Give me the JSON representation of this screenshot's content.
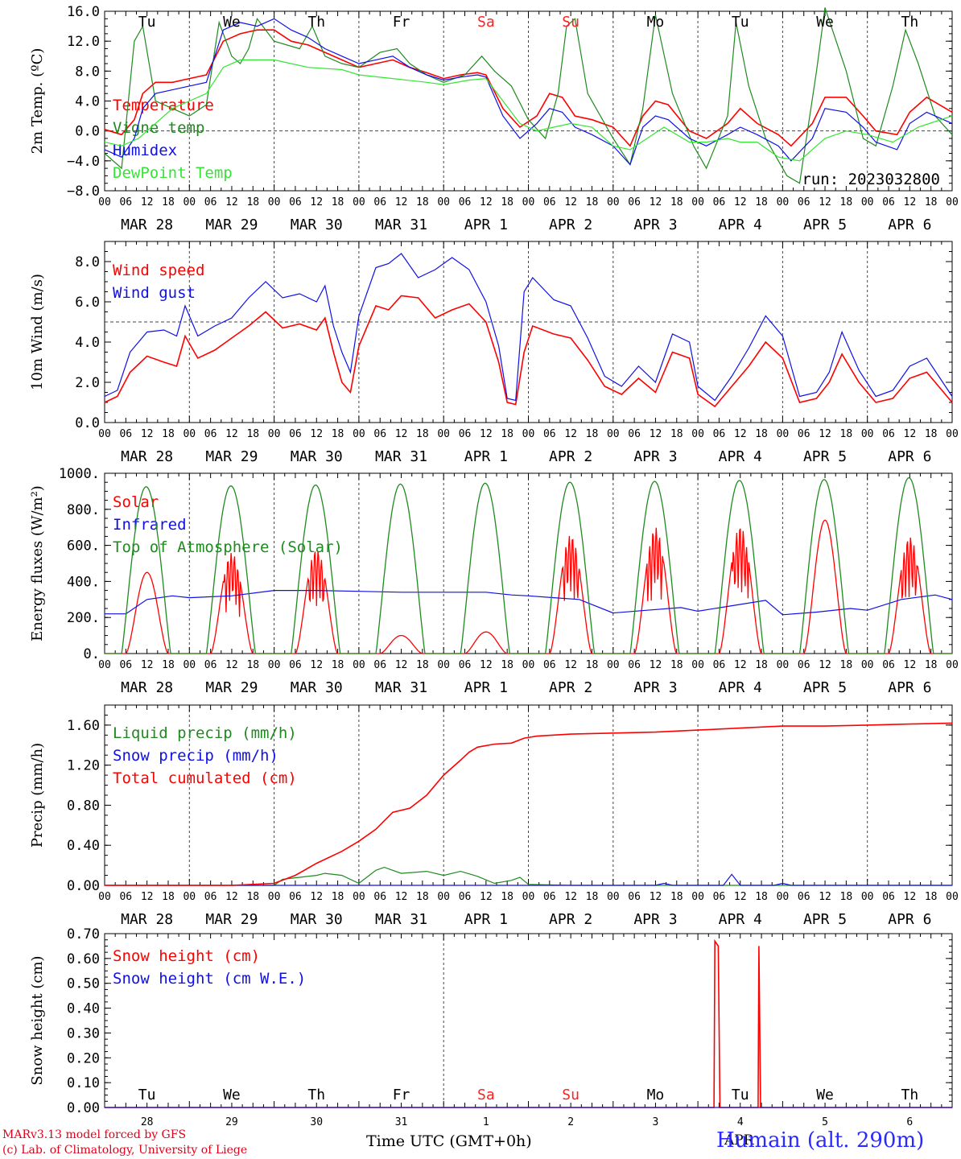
{
  "colors": {
    "red": "#ff0000",
    "dark_green": "#1f8a1f",
    "blue": "#1010e6",
    "light_green": "#33e633",
    "weekend": "#ff2020",
    "text": "#000000"
  },
  "days": {
    "weekday_labels": [
      "Tu",
      "We",
      "Th",
      "Fr",
      "Sa",
      "Su",
      "Mo",
      "Tu",
      "We",
      "Th"
    ],
    "date_labels": [
      "MAR 28",
      "MAR 29",
      "MAR 30",
      "MAR 31",
      "APR  1",
      "APR  2",
      "APR  3",
      "APR  4",
      "APR  5",
      "APR  6"
    ],
    "day_numbers": [
      "28",
      "29",
      "30",
      "31",
      "1",
      "2",
      "3",
      "4",
      "5",
      "6"
    ],
    "weekend_index": [
      4,
      5
    ],
    "hour_ticks": [
      "00",
      "06",
      "12",
      "18"
    ],
    "last_hour": "00"
  },
  "footer": {
    "credit_line1": "MARv3.13 model forced by GFS",
    "credit_line2": "(c) Lab. of Climatology, University of Liege",
    "x_title": "Time UTC (GMT+0h)",
    "bottom_month": "APR",
    "station": "Humain (alt. 290m)"
  },
  "chart_data": [
    {
      "type": "line",
      "ylabel": "2m Temp. (ºC)",
      "ylim": [
        -8,
        16
      ],
      "ytick_labels": [
        "16.0",
        "12.0",
        "8.0",
        "4.0",
        "0.0",
        "−4.0",
        "−8.0"
      ],
      "reference_line": 0,
      "run_label": "run: 2023032800",
      "x_unit": "days since MAR 28 00 UTC",
      "series": [
        {
          "name": "Temperature",
          "color": "#ff0000",
          "x": [
            0,
            0.2,
            0.35,
            0.45,
            0.6,
            0.8,
            1.0,
            1.2,
            1.4,
            1.6,
            1.8,
            2.0,
            2.2,
            2.4,
            2.6,
            2.8,
            3.0,
            3.2,
            3.4,
            3.6,
            3.8,
            4.0,
            4.2,
            4.4,
            4.5,
            4.7,
            4.9,
            5.1,
            5.25,
            5.4,
            5.55,
            5.75,
            6.0,
            6.2,
            6.35,
            6.5,
            6.65,
            6.9,
            7.1,
            7.35,
            7.5,
            7.7,
            7.95,
            8.1,
            8.35,
            8.5,
            8.75,
            8.95,
            9.1,
            9.35,
            9.5,
            9.7,
            10.0
          ],
          "y": [
            0.2,
            -0.5,
            1.5,
            5.0,
            6.5,
            6.5,
            7.0,
            7.5,
            12.0,
            13.0,
            13.5,
            13.5,
            12.0,
            11.5,
            10.5,
            9.5,
            8.5,
            9.0,
            9.5,
            8.5,
            7.8,
            7.0,
            7.5,
            7.8,
            7.5,
            3.0,
            0.5,
            2.0,
            5.0,
            4.5,
            2.0,
            1.5,
            0.5,
            -2.0,
            2.0,
            4.0,
            3.5,
            0.0,
            -1.0,
            1.0,
            3.0,
            1.0,
            -0.5,
            -2.0,
            1.0,
            4.5,
            4.5,
            2.0,
            0.0,
            -0.5,
            2.5,
            4.5,
            2.5
          ]
        },
        {
          "name": "Vigne temp",
          "color": "#1f8a1f",
          "x": [
            0,
            0.2,
            0.35,
            0.45,
            0.6,
            0.8,
            1.0,
            1.2,
            1.35,
            1.5,
            1.6,
            1.7,
            1.8,
            2.0,
            2.3,
            2.45,
            2.6,
            2.8,
            3.0,
            3.25,
            3.45,
            3.6,
            3.8,
            4.0,
            4.25,
            4.45,
            4.6,
            4.8,
            5.0,
            5.2,
            5.35,
            5.45,
            5.55,
            5.7,
            6.0,
            6.2,
            6.35,
            6.5,
            6.7,
            6.95,
            7.1,
            7.35,
            7.45,
            7.6,
            7.8,
            8.05,
            8.2,
            8.4,
            8.5,
            8.75,
            8.95,
            9.1,
            9.3,
            9.45,
            9.6,
            9.8,
            10.0
          ],
          "y": [
            -3.0,
            -5.0,
            12.0,
            14.0,
            4.0,
            3.0,
            2.0,
            3.5,
            14.5,
            10.0,
            9.0,
            11.0,
            15.0,
            12.0,
            11.0,
            14.0,
            10.0,
            9.0,
            8.5,
            10.5,
            11.0,
            9.0,
            7.5,
            6.5,
            7.5,
            10.0,
            8.0,
            6.0,
            1.5,
            -1.0,
            5.0,
            14.0,
            15.0,
            5.0,
            -1.0,
            -4.5,
            3.0,
            15.5,
            5.0,
            -2.0,
            -5.0,
            2.0,
            14.5,
            6.0,
            -1.0,
            -6.0,
            -7.0,
            8.0,
            16.5,
            8.0,
            -1.0,
            -2.0,
            6.0,
            13.5,
            9.0,
            2.0,
            -0.5
          ]
        },
        {
          "name": "Humidex",
          "color": "#1010e6",
          "x": [
            0,
            0.2,
            0.35,
            0.45,
            0.6,
            0.8,
            1.0,
            1.2,
            1.4,
            1.6,
            1.8,
            2.0,
            2.2,
            2.4,
            2.6,
            2.8,
            3.0,
            3.2,
            3.4,
            3.6,
            3.8,
            4.0,
            4.2,
            4.4,
            4.5,
            4.7,
            4.9,
            5.1,
            5.25,
            5.4,
            5.55,
            5.75,
            6.0,
            6.2,
            6.35,
            6.5,
            6.65,
            6.9,
            7.1,
            7.35,
            7.5,
            7.7,
            7.95,
            8.1,
            8.35,
            8.5,
            8.75,
            8.95,
            9.1,
            9.35,
            9.5,
            9.7,
            10.0
          ],
          "y": [
            -2.5,
            -3.5,
            -1.0,
            3.0,
            5.0,
            5.5,
            6.0,
            6.5,
            13.5,
            14.5,
            14.0,
            15.0,
            13.5,
            12.5,
            11.0,
            10.0,
            9.0,
            9.5,
            10.0,
            8.5,
            7.5,
            6.8,
            7.2,
            7.5,
            7.2,
            2.0,
            -1.0,
            1.0,
            3.0,
            2.5,
            0.5,
            -0.5,
            -2.0,
            -4.5,
            0.5,
            2.0,
            1.5,
            -1.0,
            -2.0,
            -0.5,
            0.5,
            -0.5,
            -2.0,
            -4.0,
            -1.0,
            3.0,
            2.5,
            0.5,
            -1.5,
            -2.5,
            1.0,
            2.5,
            1.0
          ]
        },
        {
          "name": "DewPoint Temp",
          "color": "#33e633",
          "x": [
            0,
            0.2,
            0.4,
            0.6,
            0.8,
            1.0,
            1.2,
            1.4,
            1.6,
            1.8,
            2.0,
            2.4,
            2.8,
            3.0,
            3.4,
            3.8,
            4.0,
            4.3,
            4.5,
            4.7,
            4.9,
            5.1,
            5.3,
            5.5,
            5.75,
            6.0,
            6.2,
            6.4,
            6.6,
            6.9,
            7.1,
            7.35,
            7.5,
            7.7,
            7.95,
            8.2,
            8.5,
            8.75,
            9.0,
            9.3,
            9.6,
            10.0
          ],
          "y": [
            -1.5,
            -2.0,
            -1.0,
            1.0,
            3.0,
            4.0,
            5.0,
            8.5,
            9.5,
            9.5,
            9.5,
            8.5,
            8.2,
            7.5,
            7.0,
            6.5,
            6.2,
            6.8,
            7.0,
            4.0,
            1.0,
            0.0,
            0.5,
            1.0,
            0.5,
            -2.0,
            -2.5,
            -1.0,
            0.5,
            -1.5,
            -1.5,
            -1.0,
            -1.5,
            -1.5,
            -3.5,
            -4.0,
            -1.0,
            0.0,
            -0.5,
            -1.5,
            0.5,
            2.0
          ]
        }
      ]
    },
    {
      "type": "line",
      "ylabel": "10m Wind (m/s)",
      "ylim": [
        0,
        9
      ],
      "ytick_labels": [
        "8.0",
        "6.0",
        "4.0",
        "2.0",
        "0.0"
      ],
      "reference_line": 5,
      "series": [
        {
          "name": "Wind speed",
          "color": "#ff0000",
          "x": [
            0,
            0.15,
            0.3,
            0.5,
            0.7,
            0.85,
            0.95,
            1.1,
            1.3,
            1.5,
            1.7,
            1.9,
            2.1,
            2.3,
            2.5,
            2.6,
            2.7,
            2.8,
            2.9,
            3.0,
            3.2,
            3.35,
            3.5,
            3.7,
            3.9,
            4.1,
            4.3,
            4.5,
            4.65,
            4.75,
            4.85,
            4.95,
            5.05,
            5.3,
            5.5,
            5.7,
            5.9,
            6.1,
            6.3,
            6.5,
            6.7,
            6.9,
            7.0,
            7.2,
            7.4,
            7.6,
            7.8,
            8.0,
            8.2,
            8.4,
            8.55,
            8.7,
            8.9,
            9.1,
            9.3,
            9.5,
            9.7,
            10.0
          ],
          "y": [
            1.0,
            1.3,
            2.5,
            3.3,
            3.0,
            2.8,
            4.3,
            3.2,
            3.6,
            4.2,
            4.8,
            5.5,
            4.7,
            4.9,
            4.6,
            5.2,
            3.5,
            2.0,
            1.5,
            3.8,
            5.8,
            5.6,
            6.3,
            6.2,
            5.2,
            5.6,
            5.9,
            5.0,
            3.0,
            1.0,
            0.9,
            3.5,
            4.8,
            4.4,
            4.2,
            3.1,
            1.8,
            1.4,
            2.2,
            1.5,
            3.5,
            3.2,
            1.4,
            0.8,
            1.8,
            2.8,
            4.0,
            3.2,
            1.0,
            1.2,
            2.0,
            3.4,
            2.0,
            1.0,
            1.2,
            2.2,
            2.5,
            1.0
          ]
        },
        {
          "name": "Wind gust",
          "color": "#1010e6",
          "x": [
            0,
            0.15,
            0.3,
            0.5,
            0.7,
            0.85,
            0.95,
            1.1,
            1.3,
            1.5,
            1.7,
            1.9,
            2.1,
            2.3,
            2.5,
            2.6,
            2.7,
            2.8,
            2.9,
            3.0,
            3.2,
            3.35,
            3.5,
            3.7,
            3.9,
            4.1,
            4.3,
            4.5,
            4.65,
            4.75,
            4.85,
            4.95,
            5.05,
            5.3,
            5.5,
            5.7,
            5.9,
            6.1,
            6.3,
            6.5,
            6.7,
            6.9,
            7.0,
            7.2,
            7.4,
            7.6,
            7.8,
            8.0,
            8.2,
            8.4,
            8.55,
            8.7,
            8.9,
            9.1,
            9.3,
            9.5,
            9.7,
            10.0
          ],
          "y": [
            1.3,
            1.6,
            3.5,
            4.5,
            4.6,
            4.3,
            5.8,
            4.3,
            4.8,
            5.2,
            6.2,
            7.0,
            6.2,
            6.4,
            6.0,
            6.8,
            4.8,
            3.5,
            2.5,
            5.3,
            7.7,
            7.9,
            8.4,
            7.2,
            7.6,
            8.2,
            7.6,
            6.0,
            3.8,
            1.2,
            1.1,
            6.5,
            7.2,
            6.1,
            5.8,
            4.2,
            2.3,
            1.8,
            2.8,
            2.0,
            4.4,
            4.0,
            1.8,
            1.1,
            2.3,
            3.7,
            5.3,
            4.3,
            1.3,
            1.5,
            2.5,
            4.5,
            2.6,
            1.3,
            1.6,
            2.8,
            3.2,
            1.3
          ]
        }
      ]
    },
    {
      "type": "line",
      "ylabel": "Energy fluxes (W/m²)",
      "ylim": [
        0,
        1000
      ],
      "ytick_labels": [
        "1000.",
        "800.",
        "600.",
        "400.",
        "200.",
        "0."
      ],
      "series": [
        {
          "name": "Solar",
          "color": "#ff0000",
          "day_peaks": [
            450,
            560,
            580,
            100,
            120,
            660,
            700,
            710,
            740,
            650
          ]
        },
        {
          "name": "Infrared",
          "color": "#1010e6",
          "x": [
            0,
            0.25,
            0.5,
            0.8,
            1.0,
            1.5,
            2.0,
            2.5,
            3.0,
            3.5,
            4.0,
            4.5,
            4.8,
            5.0,
            5.3,
            5.6,
            6.0,
            6.4,
            6.8,
            7.0,
            7.4,
            7.8,
            8.0,
            8.4,
            8.8,
            9.0,
            9.4,
            9.8,
            10.0
          ],
          "y": [
            220,
            220,
            300,
            320,
            310,
            320,
            350,
            350,
            345,
            340,
            340,
            340,
            325,
            320,
            310,
            300,
            225,
            240,
            255,
            235,
            265,
            295,
            215,
            230,
            250,
            240,
            300,
            325,
            300
          ]
        },
        {
          "name": "Top of Atmosphere (Solar)",
          "color": "#1f8a1f",
          "day_peaks": [
            925,
            930,
            935,
            940,
            945,
            950,
            955,
            960,
            965,
            975
          ]
        }
      ]
    },
    {
      "type": "line",
      "ylabel": "Precip (mm/h)",
      "ylim": [
        0,
        1.8
      ],
      "ytick_labels": [
        "1.60",
        "1.20",
        "0.80",
        "0.40",
        "0.00"
      ],
      "series": [
        {
          "name": "Liquid precip (mm/h)",
          "color": "#1f8a1f",
          "x": [
            0,
            1.5,
            2.0,
            2.1,
            2.3,
            2.5,
            2.6,
            2.8,
            3.0,
            3.2,
            3.3,
            3.5,
            3.8,
            4.0,
            4.2,
            4.4,
            4.6,
            4.8,
            4.9,
            5.0,
            5.5,
            6.0,
            10.0
          ],
          "y": [
            0,
            0,
            0,
            0.06,
            0.08,
            0.1,
            0.12,
            0.1,
            0.02,
            0.15,
            0.18,
            0.12,
            0.14,
            0.1,
            0.14,
            0.09,
            0.02,
            0.05,
            0.08,
            0.01,
            0,
            0,
            0
          ]
        },
        {
          "name": "Snow precip (mm/h)",
          "color": "#1010e6",
          "x": [
            0,
            5.0,
            6.5,
            6.6,
            6.7,
            7.3,
            7.4,
            7.5,
            7.9,
            8.0,
            8.1,
            10.0
          ],
          "y": [
            0,
            0,
            0,
            0.02,
            0,
            0,
            0.11,
            0,
            0,
            0.02,
            0,
            0
          ]
        },
        {
          "name": "Total cumulated (cm)",
          "color": "#ff0000",
          "x": [
            0,
            1.5,
            2.0,
            2.25,
            2.5,
            2.8,
            3.0,
            3.2,
            3.4,
            3.6,
            3.8,
            4.0,
            4.2,
            4.3,
            4.4,
            4.6,
            4.8,
            4.95,
            5.1,
            5.5,
            6.0,
            6.5,
            7.0,
            7.5,
            8.0,
            8.5,
            9.0,
            9.5,
            10.0
          ],
          "y": [
            0,
            0,
            0.02,
            0.1,
            0.22,
            0.34,
            0.44,
            0.56,
            0.73,
            0.77,
            0.9,
            1.1,
            1.25,
            1.33,
            1.38,
            1.41,
            1.42,
            1.47,
            1.49,
            1.51,
            1.52,
            1.53,
            1.55,
            1.57,
            1.59,
            1.59,
            1.6,
            1.61,
            1.62
          ]
        }
      ]
    },
    {
      "type": "line",
      "ylabel": "Snow height (cm)",
      "ylim": [
        0,
        0.7
      ],
      "ytick_labels": [
        "0.70",
        "0.60",
        "0.50",
        "0.40",
        "0.30",
        "0.20",
        "0.10",
        "0.00"
      ],
      "series": [
        {
          "name": "Snow height (cm)",
          "color": "#ff0000",
          "x": [
            0,
            7.19,
            7.2,
            7.24,
            7.26,
            7.27,
            7.71,
            7.72,
            7.74,
            7.75,
            10.0
          ],
          "y": [
            0,
            0,
            0.67,
            0.65,
            0,
            0,
            0,
            0.65,
            0,
            0,
            0
          ]
        },
        {
          "name": "Snow height (cm W.E.)",
          "color": "#1010e6",
          "x": [
            0,
            10.0
          ],
          "y": [
            0,
            0
          ]
        }
      ]
    }
  ]
}
